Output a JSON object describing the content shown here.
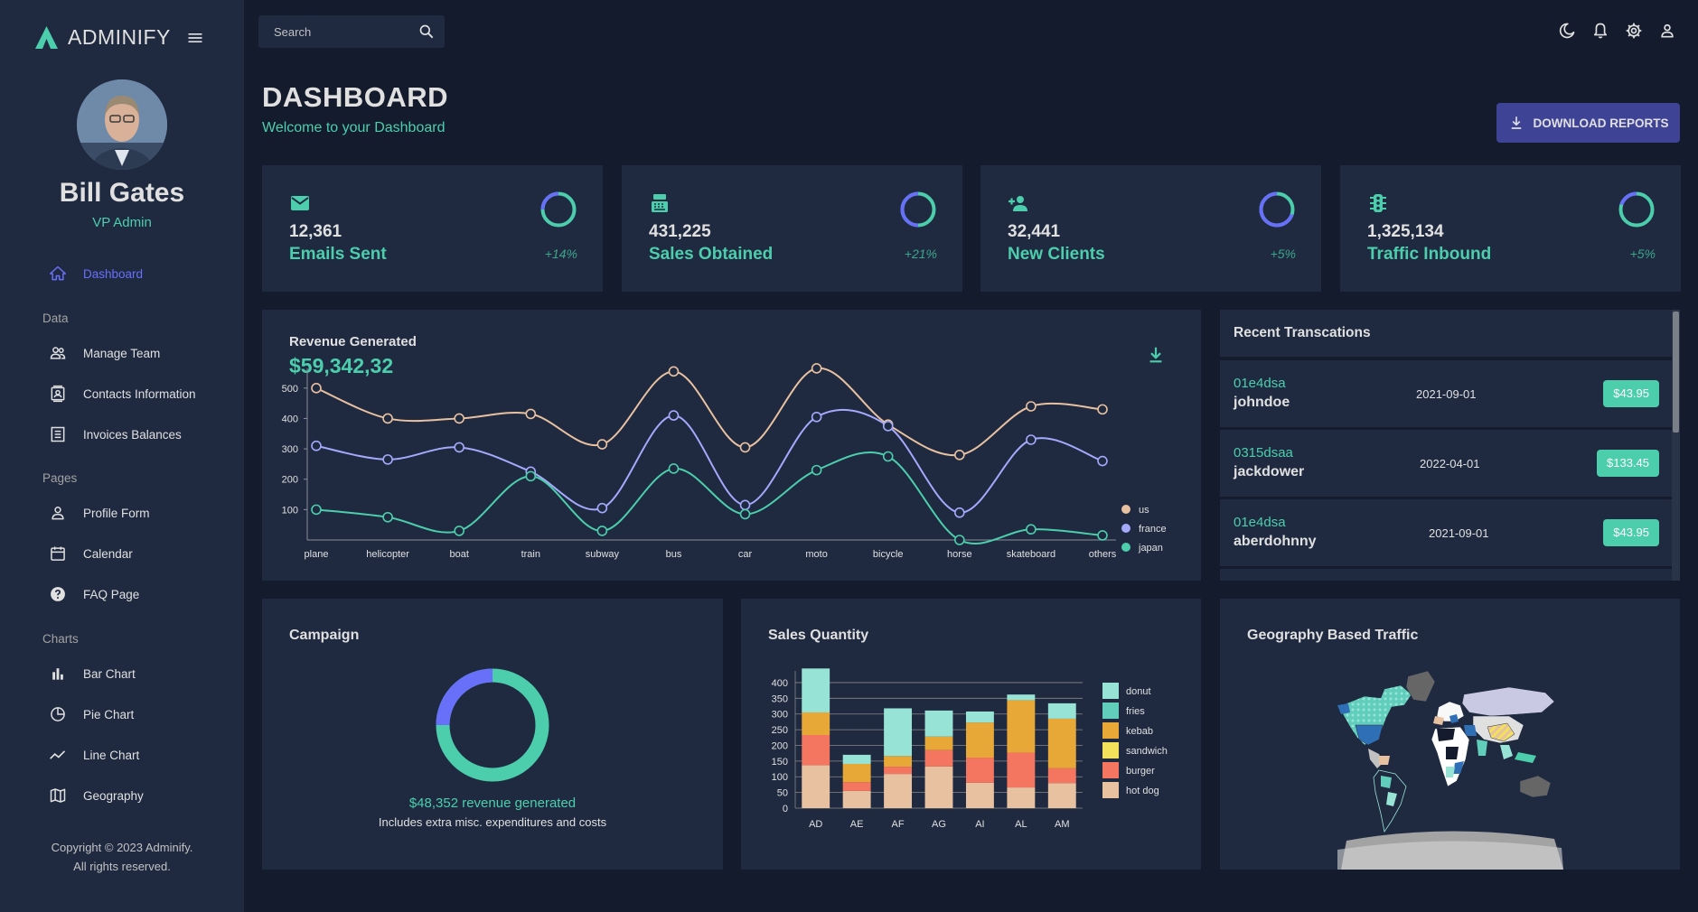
{
  "app": {
    "brand": "ADMINIFY"
  },
  "user": {
    "name": "Bill Gates",
    "role": "VP Admin"
  },
  "sidebar": {
    "dashboard": "Dashboard",
    "sections": {
      "data": "Data",
      "pages": "Pages",
      "charts": "Charts"
    },
    "data_items": [
      "Manage Team",
      "Contacts Information",
      "Invoices Balances"
    ],
    "page_items": [
      "Profile Form",
      "Calendar",
      "FAQ Page"
    ],
    "chart_items": [
      "Bar Chart",
      "Pie Chart",
      "Line Chart",
      "Geography"
    ],
    "copyright_line1": "Copyright © 2023 Adminify.",
    "copyright_line2": "All rights reserved."
  },
  "topbar": {
    "search_placeholder": "Search",
    "icons": [
      "moon-icon",
      "bell-icon",
      "gear-icon",
      "person-icon"
    ]
  },
  "header": {
    "title": "DASHBOARD",
    "subtitle": "Welcome to your Dashboard",
    "download_label": "DOWNLOAD REPORTS"
  },
  "stats": [
    {
      "icon": "email-icon",
      "value": "12,361",
      "label": "Emails Sent",
      "increase": "+14%",
      "progress": 0.75
    },
    {
      "icon": "point-of-sale-icon",
      "value": "431,225",
      "label": "Sales Obtained",
      "increase": "+21%",
      "progress": 0.5
    },
    {
      "icon": "person-add-icon",
      "value": "32,441",
      "label": "New Clients",
      "increase": "+5%",
      "progress": 0.3
    },
    {
      "icon": "traffic-icon",
      "value": "1,325,134",
      "label": "Traffic Inbound",
      "increase": "+5%",
      "progress": 0.8
    }
  ],
  "revenue": {
    "title": "Revenue Generated",
    "value": "$59,342,32"
  },
  "transactions": {
    "title": "Recent Transcations",
    "rows": [
      {
        "id": "01e4dsa",
        "user": "johndoe",
        "date": "2021-09-01",
        "cost": "$43.95"
      },
      {
        "id": "0315dsaa",
        "user": "jackdower",
        "date": "2022-04-01",
        "cost": "$133.45"
      },
      {
        "id": "01e4dsa",
        "user": "aberdohnny",
        "date": "2021-09-01",
        "cost": "$43.95"
      }
    ]
  },
  "campaign": {
    "title": "Campaign",
    "revenue_text": "$48,352 revenue generated",
    "note": "Includes extra misc. expenditures and costs",
    "progress": 0.75
  },
  "sales": {
    "title": "Sales Quantity"
  },
  "geo": {
    "title": "Geography Based Traffic"
  },
  "colors": {
    "accent": "#4cceac",
    "primary": "#6870fa",
    "card": "#1f2a40",
    "bg": "#141b2d",
    "button": "#3e4396"
  },
  "chart_data": [
    {
      "type": "line",
      "title": "",
      "x": [
        "plane",
        "helicopter",
        "boat",
        "train",
        "subway",
        "bus",
        "car",
        "moto",
        "bicycle",
        "horse",
        "skateboard",
        "others"
      ],
      "ylim": [
        0,
        550
      ],
      "yticks": [
        100,
        200,
        300,
        400,
        500
      ],
      "series": [
        {
          "name": "us",
          "color": "#e8c1a0",
          "values": [
            500,
            400,
            400,
            415,
            315,
            555,
            305,
            565,
            380,
            280,
            440,
            430
          ]
        },
        {
          "name": "france",
          "color": "#a4a9fc",
          "values": [
            310,
            265,
            305,
            225,
            105,
            410,
            115,
            405,
            375,
            90,
            330,
            260
          ]
        },
        {
          "name": "japan",
          "color": "#4cceac",
          "values": [
            100,
            75,
            30,
            210,
            30,
            235,
            85,
            230,
            275,
            0,
            35,
            15
          ]
        }
      ]
    },
    {
      "type": "bar",
      "title": "",
      "categories": [
        "AD",
        "AE",
        "AF",
        "AG",
        "AI",
        "AL",
        "AM"
      ],
      "ylim": [
        0,
        420
      ],
      "yticks": [
        0,
        50,
        100,
        150,
        200,
        250,
        300,
        350,
        400
      ],
      "series": [
        {
          "name": "hot dog",
          "color": "#e8c1a0",
          "values": [
            137,
            55,
            109,
            133,
            81,
            66,
            80
          ]
        },
        {
          "name": "burger",
          "color": "#f47560",
          "values": [
            96,
            28,
            23,
            52,
            80,
            111,
            47
          ]
        },
        {
          "name": "sandwich",
          "color": "#f1e15b",
          "values": [
            0,
            0,
            0,
            0,
            0,
            0,
            0
          ]
        },
        {
          "name": "kebab",
          "color": "#e8a838",
          "values": [
            72,
            58,
            34,
            43,
            112,
            167,
            158
          ]
        },
        {
          "name": "fries",
          "color": "#61cdbb",
          "values": [
            0,
            0,
            0,
            0,
            0,
            0,
            0
          ]
        },
        {
          "name": "donut",
          "color": "#97e3d5",
          "values": [
            140,
            29,
            152,
            83,
            35,
            18,
            49
          ]
        }
      ],
      "legend": [
        "donut",
        "fries",
        "kebab",
        "sandwich",
        "burger",
        "hot dog"
      ]
    }
  ]
}
